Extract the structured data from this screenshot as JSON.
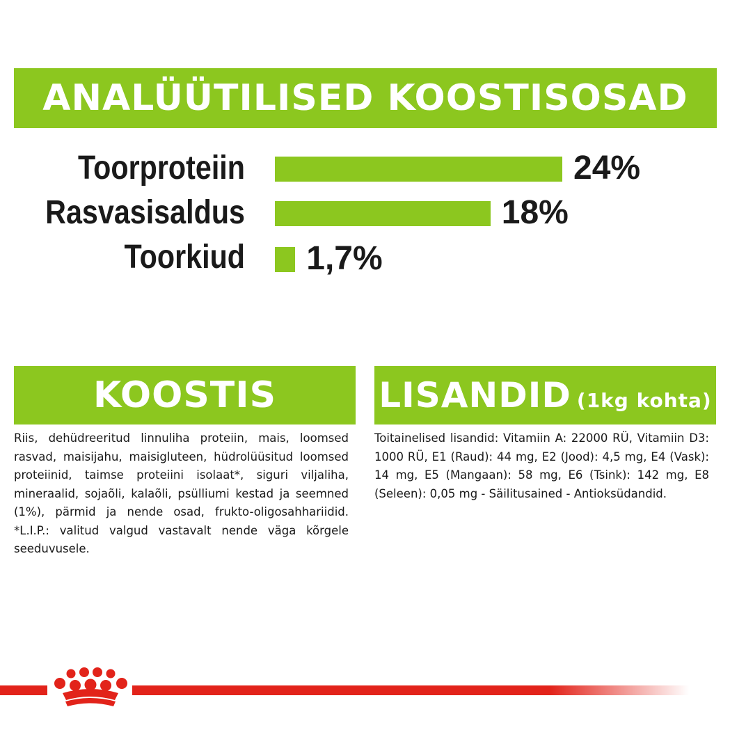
{
  "header": {
    "title": "ANALÜÜTILISED KOOSTISOSAD"
  },
  "analytics": {
    "rows": [
      {
        "label": "Toorproteiin",
        "value_text": "24%",
        "value": 24
      },
      {
        "label": "Rasvasisaldus",
        "value_text": "18%",
        "value": 18
      },
      {
        "label": "Toorkiud",
        "value_text": "1,7%",
        "value": 1.7
      }
    ]
  },
  "koostis": {
    "title": "KOOSTIS",
    "text": "Riis, dehüdreeritud linnuliha proteiin, mais, loomsed rasvad, maisijahu, maisigluteen, hüdrolüüsitud loomsed proteiinid, taimse proteiini isolaat*, siguri viljaliha, mineraalid, sojaõli, kalaõli, psülliumi kestad ja seemned (1%), pärmid ja nende osad, frukto-oligosahhariidid. *L.I.P.: valitud valgud vastavalt nende väga kõrgele seeduvusele."
  },
  "lisandid": {
    "title": "LISANDID",
    "subtitle": "(1kg kohta)",
    "text": "Toitainelised lisandid: Vitamiin A: 22000 RÜ, Vitamiin D3: 1000 RÜ, E1 (Raud): 44 mg, E2 (Jood): 4,5 mg, E4 (Vask): 14 mg, E5 (Mangaan): 58 mg, E6 (Tsink): 142 mg, E8 (Seleen): 0,05 mg - Säilitusained - Antioksüdandid."
  },
  "colors": {
    "accent": "#8cc71f",
    "brand_red": "#e2231a",
    "text": "#1a1a1a"
  },
  "footer": {
    "logo_icon": "royal-canin-crown-icon"
  }
}
